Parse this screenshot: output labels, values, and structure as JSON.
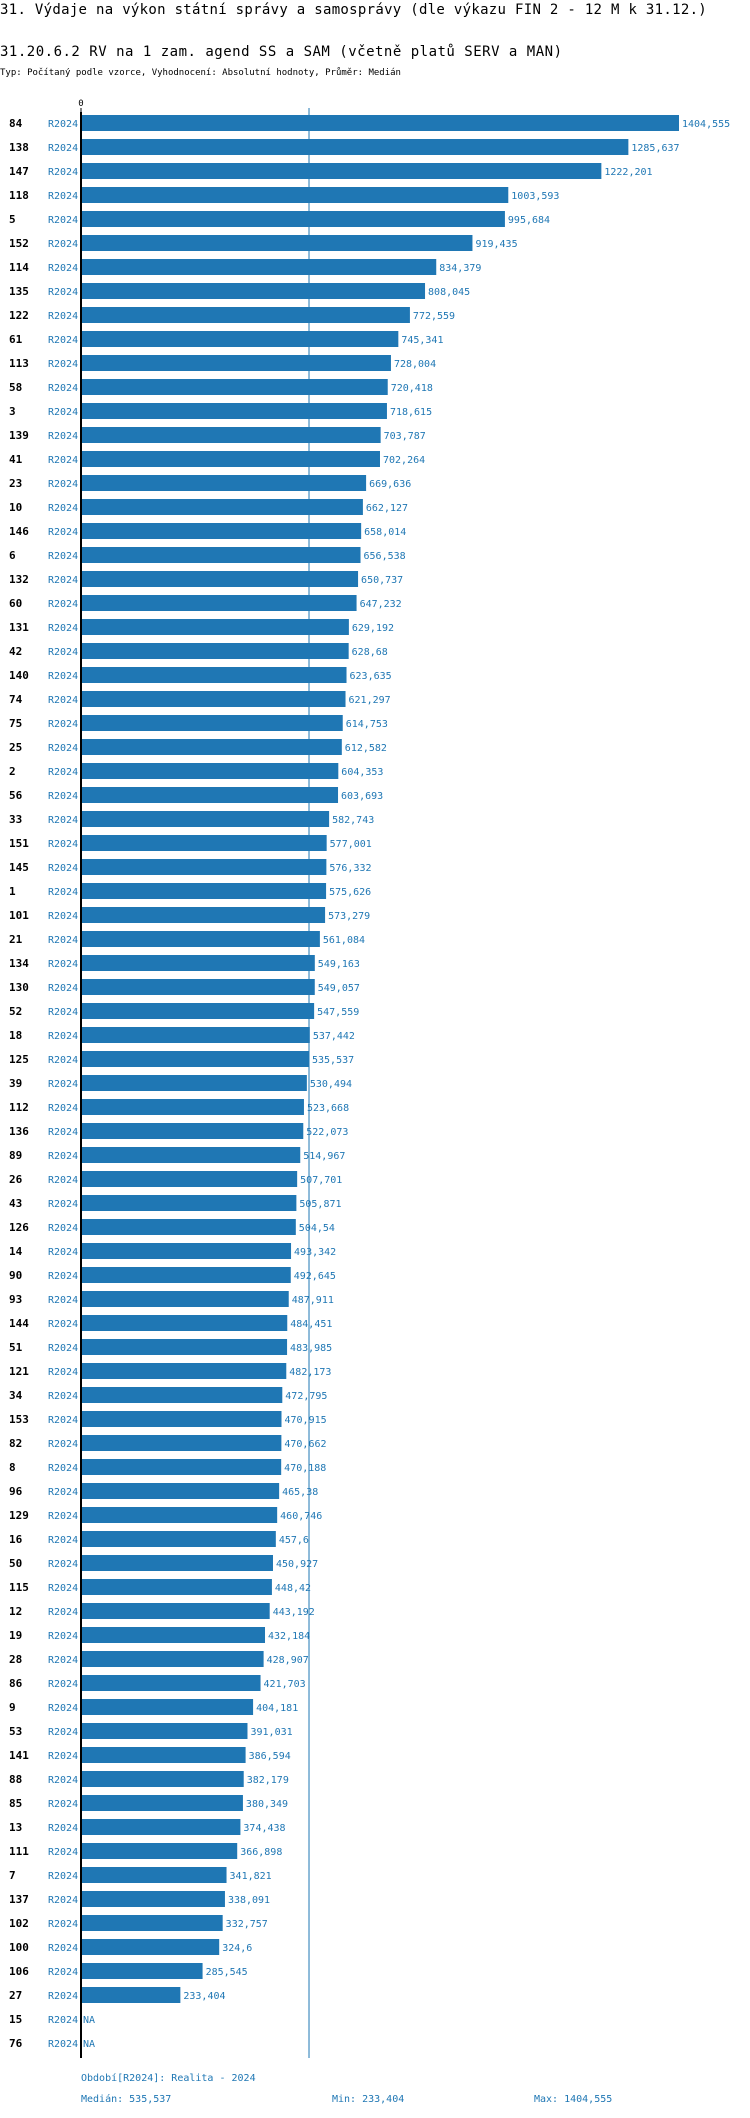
{
  "header": {
    "title": "31. Výdaje na výkon státní správy a samosprávy (dle výkazu FIN 2 - 12 M k 31.12.)",
    "subtitle": "31.20.6.2 RV na 1 zam. agend SS a SAM (včetně platů SERV a MAN)",
    "meta": "Typ: Počítaný podle vzorce, Vyhodnocení: Absolutní hodnoty, Průměr: Medián"
  },
  "chart_data": {
    "type": "bar",
    "orientation": "horizontal",
    "x_tick_labels": [
      "0"
    ],
    "xlim": [
      0,
      1404.555
    ],
    "grid": false,
    "reference_line": {
      "name": "Medián",
      "value": 535.537
    },
    "colors": {
      "bar": "#1f77b4",
      "label": "#1f77b4",
      "axis": "#000000"
    },
    "rows": [
      {
        "id": "84",
        "period": "R2024",
        "value": 1404.555,
        "label": "1404,555"
      },
      {
        "id": "138",
        "period": "R2024",
        "value": 1285.637,
        "label": "1285,637"
      },
      {
        "id": "147",
        "period": "R2024",
        "value": 1222.201,
        "label": "1222,201"
      },
      {
        "id": "118",
        "period": "R2024",
        "value": 1003.593,
        "label": "1003,593"
      },
      {
        "id": "5",
        "period": "R2024",
        "value": 995.684,
        "label": "995,684"
      },
      {
        "id": "152",
        "period": "R2024",
        "value": 919.435,
        "label": "919,435"
      },
      {
        "id": "114",
        "period": "R2024",
        "value": 834.379,
        "label": "834,379"
      },
      {
        "id": "135",
        "period": "R2024",
        "value": 808.045,
        "label": "808,045"
      },
      {
        "id": "122",
        "period": "R2024",
        "value": 772.559,
        "label": "772,559"
      },
      {
        "id": "61",
        "period": "R2024",
        "value": 745.341,
        "label": "745,341"
      },
      {
        "id": "113",
        "period": "R2024",
        "value": 728.004,
        "label": "728,004"
      },
      {
        "id": "58",
        "period": "R2024",
        "value": 720.418,
        "label": "720,418"
      },
      {
        "id": "3",
        "period": "R2024",
        "value": 718.615,
        "label": "718,615"
      },
      {
        "id": "139",
        "period": "R2024",
        "value": 703.787,
        "label": "703,787"
      },
      {
        "id": "41",
        "period": "R2024",
        "value": 702.264,
        "label": "702,264"
      },
      {
        "id": "23",
        "period": "R2024",
        "value": 669.636,
        "label": "669,636"
      },
      {
        "id": "10",
        "period": "R2024",
        "value": 662.127,
        "label": "662,127"
      },
      {
        "id": "146",
        "period": "R2024",
        "value": 658.014,
        "label": "658,014"
      },
      {
        "id": "6",
        "period": "R2024",
        "value": 656.538,
        "label": "656,538"
      },
      {
        "id": "132",
        "period": "R2024",
        "value": 650.737,
        "label": "650,737"
      },
      {
        "id": "60",
        "period": "R2024",
        "value": 647.232,
        "label": "647,232"
      },
      {
        "id": "131",
        "period": "R2024",
        "value": 629.192,
        "label": "629,192"
      },
      {
        "id": "42",
        "period": "R2024",
        "value": 628.68,
        "label": "628,68"
      },
      {
        "id": "140",
        "period": "R2024",
        "value": 623.635,
        "label": "623,635"
      },
      {
        "id": "74",
        "period": "R2024",
        "value": 621.297,
        "label": "621,297"
      },
      {
        "id": "75",
        "period": "R2024",
        "value": 614.753,
        "label": "614,753"
      },
      {
        "id": "25",
        "period": "R2024",
        "value": 612.582,
        "label": "612,582"
      },
      {
        "id": "2",
        "period": "R2024",
        "value": 604.353,
        "label": "604,353"
      },
      {
        "id": "56",
        "period": "R2024",
        "value": 603.693,
        "label": "603,693"
      },
      {
        "id": "33",
        "period": "R2024",
        "value": 582.743,
        "label": "582,743"
      },
      {
        "id": "151",
        "period": "R2024",
        "value": 577.001,
        "label": "577,001"
      },
      {
        "id": "145",
        "period": "R2024",
        "value": 576.332,
        "label": "576,332"
      },
      {
        "id": "1",
        "period": "R2024",
        "value": 575.626,
        "label": "575,626"
      },
      {
        "id": "101",
        "period": "R2024",
        "value": 573.279,
        "label": "573,279"
      },
      {
        "id": "21",
        "period": "R2024",
        "value": 561.084,
        "label": "561,084"
      },
      {
        "id": "134",
        "period": "R2024",
        "value": 549.163,
        "label": "549,163"
      },
      {
        "id": "130",
        "period": "R2024",
        "value": 549.057,
        "label": "549,057"
      },
      {
        "id": "52",
        "period": "R2024",
        "value": 547.559,
        "label": "547,559"
      },
      {
        "id": "18",
        "period": "R2024",
        "value": 537.442,
        "label": "537,442"
      },
      {
        "id": "125",
        "period": "R2024",
        "value": 535.537,
        "label": "535,537"
      },
      {
        "id": "39",
        "period": "R2024",
        "value": 530.494,
        "label": "530,494"
      },
      {
        "id": "112",
        "period": "R2024",
        "value": 523.668,
        "label": "523,668"
      },
      {
        "id": "136",
        "period": "R2024",
        "value": 522.073,
        "label": "522,073"
      },
      {
        "id": "89",
        "period": "R2024",
        "value": 514.967,
        "label": "514,967"
      },
      {
        "id": "26",
        "period": "R2024",
        "value": 507.701,
        "label": "507,701"
      },
      {
        "id": "43",
        "period": "R2024",
        "value": 505.871,
        "label": "505,871"
      },
      {
        "id": "126",
        "period": "R2024",
        "value": 504.54,
        "label": "504,54"
      },
      {
        "id": "14",
        "period": "R2024",
        "value": 493.342,
        "label": "493,342"
      },
      {
        "id": "90",
        "period": "R2024",
        "value": 492.645,
        "label": "492,645"
      },
      {
        "id": "93",
        "period": "R2024",
        "value": 487.911,
        "label": "487,911"
      },
      {
        "id": "144",
        "period": "R2024",
        "value": 484.451,
        "label": "484,451"
      },
      {
        "id": "51",
        "period": "R2024",
        "value": 483.985,
        "label": "483,985"
      },
      {
        "id": "121",
        "period": "R2024",
        "value": 482.173,
        "label": "482,173"
      },
      {
        "id": "34",
        "period": "R2024",
        "value": 472.795,
        "label": "472,795"
      },
      {
        "id": "153",
        "period": "R2024",
        "value": 470.915,
        "label": "470,915"
      },
      {
        "id": "82",
        "period": "R2024",
        "value": 470.662,
        "label": "470,662"
      },
      {
        "id": "8",
        "period": "R2024",
        "value": 470.188,
        "label": "470,188"
      },
      {
        "id": "96",
        "period": "R2024",
        "value": 465.38,
        "label": "465,38"
      },
      {
        "id": "129",
        "period": "R2024",
        "value": 460.746,
        "label": "460,746"
      },
      {
        "id": "16",
        "period": "R2024",
        "value": 457.6,
        "label": "457,6"
      },
      {
        "id": "50",
        "period": "R2024",
        "value": 450.927,
        "label": "450,927"
      },
      {
        "id": "115",
        "period": "R2024",
        "value": 448.42,
        "label": "448,42"
      },
      {
        "id": "12",
        "period": "R2024",
        "value": 443.192,
        "label": "443,192"
      },
      {
        "id": "19",
        "period": "R2024",
        "value": 432.184,
        "label": "432,184"
      },
      {
        "id": "28",
        "period": "R2024",
        "value": 428.907,
        "label": "428,907"
      },
      {
        "id": "86",
        "period": "R2024",
        "value": 421.703,
        "label": "421,703"
      },
      {
        "id": "9",
        "period": "R2024",
        "value": 404.181,
        "label": "404,181"
      },
      {
        "id": "53",
        "period": "R2024",
        "value": 391.031,
        "label": "391,031"
      },
      {
        "id": "141",
        "period": "R2024",
        "value": 386.594,
        "label": "386,594"
      },
      {
        "id": "88",
        "period": "R2024",
        "value": 382.179,
        "label": "382,179"
      },
      {
        "id": "85",
        "period": "R2024",
        "value": 380.349,
        "label": "380,349"
      },
      {
        "id": "13",
        "period": "R2024",
        "value": 374.438,
        "label": "374,438"
      },
      {
        "id": "111",
        "period": "R2024",
        "value": 366.898,
        "label": "366,898"
      },
      {
        "id": "7",
        "period": "R2024",
        "value": 341.821,
        "label": "341,821"
      },
      {
        "id": "137",
        "period": "R2024",
        "value": 338.091,
        "label": "338,091"
      },
      {
        "id": "102",
        "period": "R2024",
        "value": 332.757,
        "label": "332,757"
      },
      {
        "id": "100",
        "period": "R2024",
        "value": 324.6,
        "label": "324,6"
      },
      {
        "id": "106",
        "period": "R2024",
        "value": 285.545,
        "label": "285,545"
      },
      {
        "id": "27",
        "period": "R2024",
        "value": 233.404,
        "label": "233,404"
      },
      {
        "id": "15",
        "period": "R2024",
        "value": null,
        "label": "NA"
      },
      {
        "id": "76",
        "period": "R2024",
        "value": null,
        "label": "NA"
      }
    ]
  },
  "footer": {
    "period": "Období[R2024]: Realita - 2024",
    "median": "Medián: 535,537",
    "min": "Min: 233,404",
    "max": "Max: 1404,555"
  }
}
